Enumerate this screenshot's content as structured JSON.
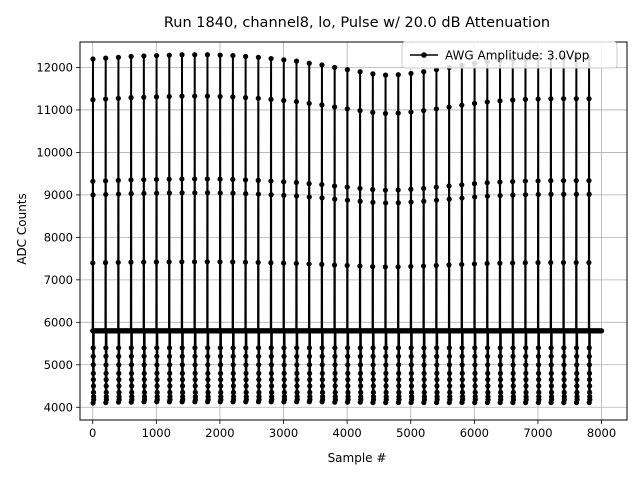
{
  "chart_data": {
    "type": "line",
    "title": "Run 1840, channel8, lo, Pulse w/ 20.0 dB Attenuation",
    "xlabel": "Sample #",
    "ylabel": "ADC Counts",
    "xlim": [
      -200,
      8400
    ],
    "ylim": [
      3700,
      12600
    ],
    "x_ticks": [
      0,
      1000,
      2000,
      3000,
      4000,
      5000,
      6000,
      7000,
      8000
    ],
    "y_ticks": [
      4000,
      5000,
      6000,
      7000,
      8000,
      9000,
      10000,
      11000,
      12000
    ],
    "grid": true,
    "legend_position": "top-right",
    "series": [
      {
        "name": "AWG Amplitude: 3.0Vpp",
        "color": "#000000",
        "marker": "circle",
        "baseline": 5800,
        "pulse_period": 200,
        "pulse_start": 0,
        "pulse_count": 40,
        "sample_range": [
          0,
          8000
        ],
        "pulse_peak_values": [
          12200,
          12220,
          12240,
          12260,
          12270,
          12280,
          12290,
          12300,
          12300,
          12300,
          12290,
          12280,
          12260,
          12240,
          12210,
          12180,
          12150,
          12100,
          12060,
          12000,
          11950,
          11900,
          11850,
          11820,
          11830,
          11860,
          11900,
          11950,
          12000,
          12050,
          12100,
          12140,
          12170,
          12190,
          12210,
          12220,
          12230,
          12230,
          12230,
          12230
        ],
        "pulse_undershoot_values": [
          4100,
          4110,
          4120,
          4120,
          4130,
          4130,
          4130,
          4130,
          4130,
          4130,
          4130,
          4130,
          4130,
          4130,
          4130,
          4130,
          4130,
          4130,
          4130,
          4120,
          4120,
          4120,
          4110,
          4110,
          4110,
          4110,
          4110,
          4110,
          4110,
          4110,
          4110,
          4110,
          4110,
          4110,
          4110,
          4110,
          4110,
          4110,
          4110,
          4110
        ],
        "intermediate_levels_undershoot": [
          5400,
          5200,
          5000,
          4800,
          4650,
          4500,
          4350,
          4250,
          4180
        ]
      }
    ]
  }
}
